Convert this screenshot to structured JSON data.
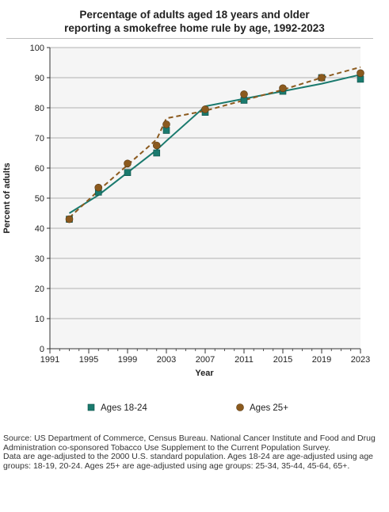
{
  "chart_data": {
    "type": "line",
    "title_lines": [
      "Percentage of adults aged 18 years and older",
      "reporting a smokefree home rule by age, 1992-2023"
    ],
    "xlabel": "Year",
    "ylabel": "Percent of adults",
    "x_ticks": [
      "1991",
      "1995",
      "1999",
      "2003",
      "2007",
      "2011",
      "2015",
      "2019",
      "2023"
    ],
    "y_ticks": [
      "0",
      "10",
      "20",
      "30",
      "40",
      "50",
      "60",
      "70",
      "80",
      "90",
      "100"
    ],
    "xlim": [
      1991,
      2023
    ],
    "ylim": [
      0,
      100
    ],
    "grid": "horizontal",
    "background": "#f5f5f5",
    "legend_position": "bottom",
    "series": [
      {
        "name": "Ages 18-24",
        "color": "#1a7a6e",
        "marker": "square",
        "line_style": "solid",
        "points": [
          {
            "x": 1993,
            "y": 43
          },
          {
            "x": 1996,
            "y": 52
          },
          {
            "x": 1999,
            "y": 58.5
          },
          {
            "x": 2002,
            "y": 65
          },
          {
            "x": 2003,
            "y": 72.5
          },
          {
            "x": 2007,
            "y": 78.5
          },
          {
            "x": 2011,
            "y": 82.5
          },
          {
            "x": 2015,
            "y": 85.5
          },
          {
            "x": 2019,
            "y": 90
          },
          {
            "x": 2023,
            "y": 89.5
          }
        ],
        "trend": [
          {
            "x": 1993,
            "y": 45
          },
          {
            "x": 1996,
            "y": 51
          },
          {
            "x": 1999,
            "y": 58.5
          },
          {
            "x": 2002,
            "y": 66
          },
          {
            "x": 2003,
            "y": 69
          },
          {
            "x": 2007,
            "y": 80.5
          },
          {
            "x": 2011,
            "y": 83
          },
          {
            "x": 2015,
            "y": 85.5
          },
          {
            "x": 2019,
            "y": 88
          },
          {
            "x": 2023,
            "y": 91
          }
        ]
      },
      {
        "name": "Ages 25+",
        "color": "#8b5a1e",
        "marker": "circle",
        "line_style": "dashed",
        "points": [
          {
            "x": 1993,
            "y": 43
          },
          {
            "x": 1996,
            "y": 53.5
          },
          {
            "x": 1999,
            "y": 61.5
          },
          {
            "x": 2002,
            "y": 67.5
          },
          {
            "x": 2003,
            "y": 74.5
          },
          {
            "x": 2007,
            "y": 79.5
          },
          {
            "x": 2011,
            "y": 84.5
          },
          {
            "x": 2015,
            "y": 86.5
          },
          {
            "x": 2019,
            "y": 90
          },
          {
            "x": 2023,
            "y": 91.5
          }
        ],
        "trend": [
          {
            "x": 1993,
            "y": 43.5
          },
          {
            "x": 1996,
            "y": 52.5
          },
          {
            "x": 1999,
            "y": 61
          },
          {
            "x": 2002,
            "y": 69.5
          },
          {
            "x": 2003,
            "y": 76.5
          },
          {
            "x": 2007,
            "y": 79
          },
          {
            "x": 2011,
            "y": 82.5
          },
          {
            "x": 2015,
            "y": 86
          },
          {
            "x": 2019,
            "y": 90
          },
          {
            "x": 2023,
            "y": 93.5
          }
        ]
      }
    ]
  },
  "notes": {
    "source": "Source: US Department of Commerce, Census Bureau. National Cancer Institute and Food and Drug Administration co-sponsored Tobacco Use Supplement to the Current Population Survey.",
    "age_adjustment": "Data are age-adjusted to the 2000 U.S. standard population. Ages 18-24 are age-adjusted using age groups: 18-19, 20-24. Ages 25+ are age-adjusted using age groups: 25-34, 35-44, 45-64, 65+."
  }
}
